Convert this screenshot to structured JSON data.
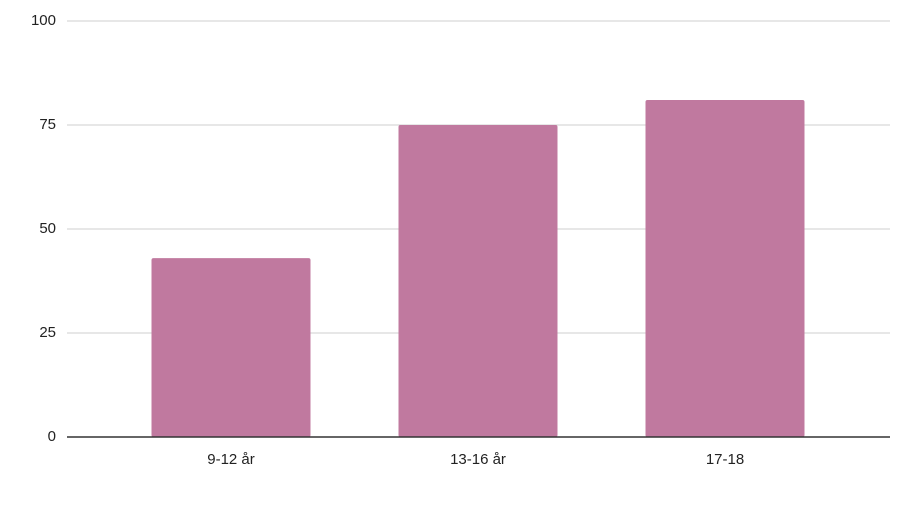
{
  "chart_data": {
    "type": "bar",
    "categories": [
      "9-12 år",
      "13-16 år",
      "17-18"
    ],
    "values": [
      43,
      75,
      81
    ],
    "color": "#c0799f",
    "ylim": [
      0,
      100
    ],
    "yticks": [
      0,
      25,
      50,
      75,
      100
    ],
    "grid": true
  }
}
